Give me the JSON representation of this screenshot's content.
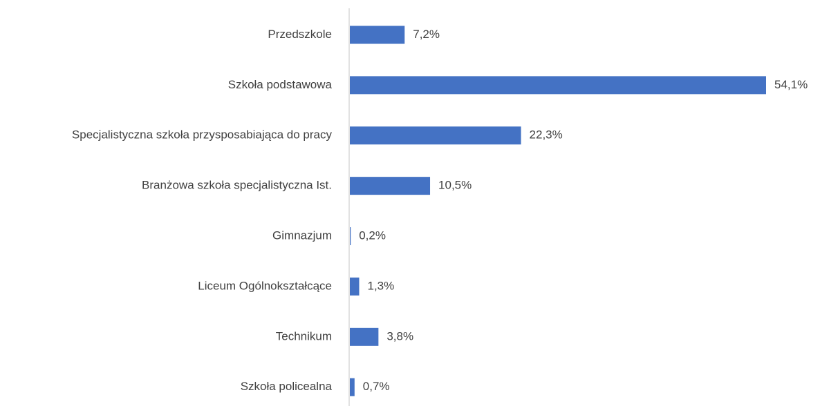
{
  "chart_data": {
    "type": "hbar",
    "categories": [
      "Przedszkole",
      "Szkoła podstawowa",
      "Specjalistyczna szkoła przysposabiająca do pracy",
      "Branżowa szkoła specjalistyczna Ist.",
      "Gimnazjum",
      "Liceum Ogólnokształcące",
      "Technikum",
      "Szkoła policealna"
    ],
    "values": [
      7.2,
      54.1,
      22.3,
      10.5,
      0.2,
      1.3,
      3.8,
      0.7
    ],
    "value_labels": [
      "7,2%",
      "54,1%",
      "22,3%",
      "10,5%",
      "0,2%",
      "1,3%",
      "3,8%",
      "0,7%"
    ],
    "color": "#4472c4"
  }
}
